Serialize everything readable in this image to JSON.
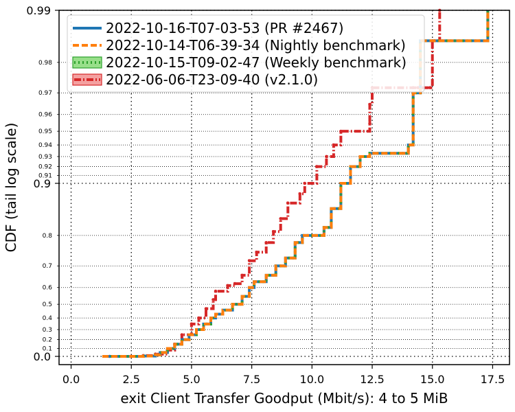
{
  "chart_data": {
    "type": "line",
    "title": "",
    "xlabel": "exit Client Transfer Goodput (Mbit/s): 4 to 5 MiB",
    "ylabel": "CDF (tail log scale)",
    "xlim": [
      -0.5,
      18.2
    ],
    "x_ticks": [
      {
        "value": 0.0,
        "label": "0.0"
      },
      {
        "value": 2.5,
        "label": "2.5"
      },
      {
        "value": 5.0,
        "label": "5.0"
      },
      {
        "value": 7.5,
        "label": "7.5"
      },
      {
        "value": 10.0,
        "label": "10.0"
      },
      {
        "value": 12.5,
        "label": "12.5"
      },
      {
        "value": 15.0,
        "label": "15.0"
      },
      {
        "value": 17.5,
        "label": "17.5"
      }
    ],
    "y_scale": "tail-log",
    "y_ticks_major": [
      {
        "value": 0.0,
        "label": "0.0"
      },
      {
        "value": 0.9,
        "label": "0.9"
      },
      {
        "value": 0.99,
        "label": "0.99"
      }
    ],
    "y_ticks_minor": [
      {
        "value": 0.1,
        "label": "0.1"
      },
      {
        "value": 0.2,
        "label": "0.2"
      },
      {
        "value": 0.3,
        "label": "0.3"
      },
      {
        "value": 0.4,
        "label": "0.4"
      },
      {
        "value": 0.5,
        "label": "0.5"
      },
      {
        "value": 0.6,
        "label": "0.6"
      },
      {
        "value": 0.7,
        "label": "0.7"
      },
      {
        "value": 0.8,
        "label": "0.8"
      },
      {
        "value": 0.91,
        "label": "0.91"
      },
      {
        "value": 0.92,
        "label": "0.92"
      },
      {
        "value": 0.93,
        "label": "0.93"
      },
      {
        "value": 0.94,
        "label": "0.94"
      },
      {
        "value": 0.95,
        "label": "0.95"
      },
      {
        "value": 0.96,
        "label": "0.96"
      },
      {
        "value": 0.97,
        "label": "0.97"
      },
      {
        "value": 0.98,
        "label": "0.98"
      }
    ],
    "grid": true,
    "legend_position": "top-left",
    "series": [
      {
        "name": "2022-10-16-T07-03-53 (PR #2467)",
        "color": "#1f77b4",
        "style": "solid",
        "x": [
          1.3,
          2.5,
          3.0,
          3.5,
          3.7,
          4.0,
          4.3,
          4.6,
          4.9,
          5.2,
          5.5,
          5.8,
          6.0,
          6.3,
          6.7,
          7.1,
          7.4,
          7.6,
          8.1,
          8.5,
          8.9,
          9.3,
          9.6,
          10.0,
          10.5,
          10.8,
          11.2,
          11.6,
          12.0,
          12.4,
          14.0,
          14.2,
          14.5,
          17.2,
          17.3,
          17.3
        ],
        "y": [
          0.0,
          0.0,
          0.005,
          0.02,
          0.05,
          0.1,
          0.15,
          0.2,
          0.25,
          0.3,
          0.35,
          0.4,
          0.43,
          0.46,
          0.5,
          0.55,
          0.6,
          0.63,
          0.66,
          0.7,
          0.73,
          0.78,
          0.8,
          0.8,
          0.82,
          0.86,
          0.9,
          0.92,
          0.93,
          0.933,
          0.94,
          0.97,
          0.985,
          0.985,
          0.99,
          0.99
        ]
      },
      {
        "name": "2022-10-14-T06-39-34 (Nightly benchmark)",
        "color": "#ff7f0e",
        "style": "dashed",
        "x": [
          1.3,
          2.5,
          3.0,
          3.5,
          3.7,
          4.0,
          4.3,
          4.6,
          4.9,
          5.2,
          5.5,
          5.8,
          6.0,
          6.3,
          6.7,
          7.1,
          7.4,
          7.6,
          8.1,
          8.5,
          8.9,
          9.3,
          9.6,
          10.0,
          10.5,
          10.8,
          11.2,
          11.6,
          12.0,
          12.4,
          14.0,
          14.2,
          14.5,
          17.2,
          17.3,
          17.3
        ],
        "y": [
          0.0,
          0.0,
          0.005,
          0.02,
          0.05,
          0.1,
          0.15,
          0.2,
          0.25,
          0.3,
          0.35,
          0.4,
          0.43,
          0.46,
          0.5,
          0.55,
          0.6,
          0.63,
          0.66,
          0.7,
          0.73,
          0.78,
          0.8,
          0.8,
          0.82,
          0.86,
          0.9,
          0.92,
          0.93,
          0.933,
          0.94,
          0.97,
          0.985,
          0.985,
          0.99,
          0.99
        ]
      },
      {
        "name": "2022-10-15-T09-02-47 (Weekly benchmark)",
        "color": "#2ca02c",
        "style": "dotted",
        "x": [
          1.3,
          2.5,
          3.0,
          3.5,
          3.7,
          4.0,
          4.3,
          4.6,
          4.9,
          5.2,
          5.5,
          5.8,
          6.0,
          6.3,
          6.7,
          7.1,
          7.4,
          7.6,
          8.1,
          8.5,
          8.9,
          9.3,
          9.6,
          10.0,
          10.5,
          10.8,
          11.2,
          11.6,
          12.0,
          12.4,
          14.0,
          14.2,
          14.5,
          17.2,
          17.3,
          17.3
        ],
        "y": [
          0.0,
          0.0,
          0.005,
          0.02,
          0.05,
          0.1,
          0.15,
          0.2,
          0.25,
          0.3,
          0.35,
          0.4,
          0.43,
          0.46,
          0.5,
          0.55,
          0.6,
          0.63,
          0.66,
          0.7,
          0.73,
          0.78,
          0.8,
          0.8,
          0.82,
          0.86,
          0.9,
          0.92,
          0.93,
          0.933,
          0.94,
          0.97,
          0.985,
          0.985,
          0.99,
          0.99
        ]
      },
      {
        "name": "2022-06-06-T23-09-40 (v2.1.0)",
        "color": "#d62728",
        "style": "dashdot",
        "x": [
          1.6,
          2.5,
          3.0,
          3.5,
          4.0,
          4.3,
          4.6,
          5.0,
          5.3,
          5.6,
          5.9,
          6.0,
          6.5,
          6.8,
          7.1,
          7.4,
          7.7,
          8.1,
          8.4,
          8.7,
          9.0,
          9.5,
          9.7,
          10.2,
          10.6,
          10.9,
          11.2,
          12.4,
          12.4,
          12.5,
          14.2,
          14.4,
          14.9,
          15.0,
          15.1,
          15.3
        ],
        "y": [
          0.0,
          0.0,
          0.01,
          0.03,
          0.08,
          0.15,
          0.25,
          0.35,
          0.4,
          0.47,
          0.53,
          0.58,
          0.61,
          0.62,
          0.66,
          0.72,
          0.75,
          0.78,
          0.81,
          0.84,
          0.87,
          0.885,
          0.9,
          0.92,
          0.93,
          0.94,
          0.95,
          0.955,
          0.965,
          0.972,
          0.972,
          0.972,
          0.972,
          0.985,
          0.985,
          0.99
        ]
      }
    ]
  }
}
